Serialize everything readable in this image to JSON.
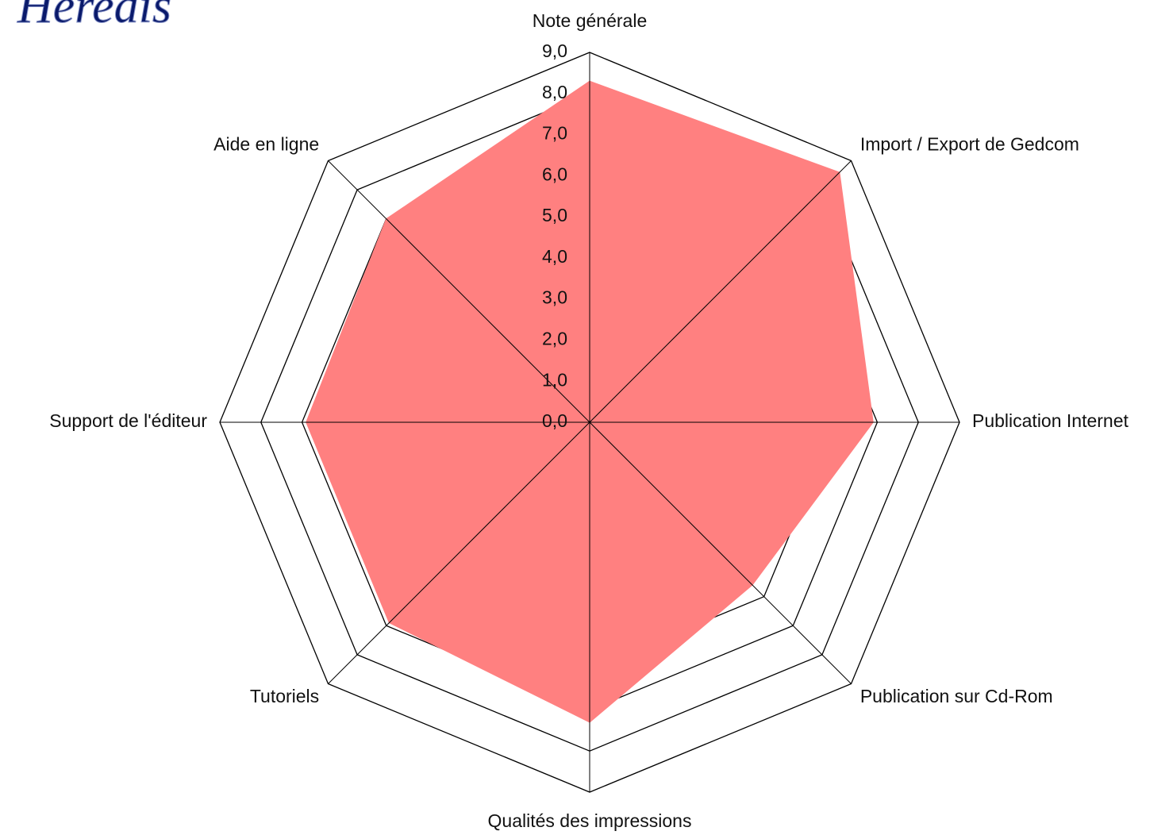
{
  "logo": "Heredis",
  "chart_data": {
    "type": "radar",
    "categories": [
      "Note générale",
      "Import / Export de Gedcom",
      "Publication Internet",
      "Publication sur Cd-Rom",
      "Qualités des impressions",
      "Tutoriels",
      "Support de l'éditeur",
      "Aide en ligne"
    ],
    "values": [
      8.3,
      8.6,
      6.9,
      5.6,
      7.3,
      6.9,
      6.9,
      7.0
    ],
    "color": "#ff8080",
    "ylim": [
      0,
      9
    ],
    "yticks": [
      {
        "value": 0,
        "label": "0,0"
      },
      {
        "value": 1,
        "label": "1,0"
      },
      {
        "value": 2,
        "label": "2,0"
      },
      {
        "value": 3,
        "label": "3,0"
      },
      {
        "value": 4,
        "label": "4,0"
      },
      {
        "value": 5,
        "label": "5,0"
      },
      {
        "value": 6,
        "label": "6,0"
      },
      {
        "value": 7,
        "label": "7,0"
      },
      {
        "value": 8,
        "label": "8,0"
      },
      {
        "value": 9,
        "label": "9,0"
      }
    ],
    "grid": true
  }
}
